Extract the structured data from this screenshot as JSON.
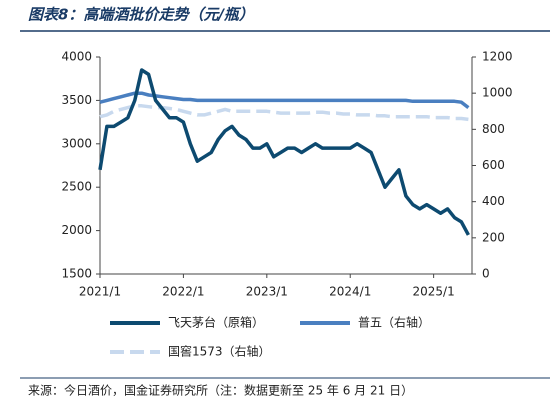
{
  "chart_data": {
    "type": "line",
    "title": "图表8：高端酒批价走势（元/瓶）",
    "source": "来源：今日酒价，国金证券研究所（注：数据更新至 25 年 6 月 21 日）",
    "x": [
      2021.0,
      2021.083,
      2021.167,
      2021.25,
      2021.333,
      2021.417,
      2021.5,
      2021.583,
      2021.667,
      2021.75,
      2021.833,
      2021.917,
      2022.0,
      2022.083,
      2022.167,
      2022.25,
      2022.333,
      2022.417,
      2022.5,
      2022.583,
      2022.667,
      2022.75,
      2022.833,
      2022.917,
      2023.0,
      2023.083,
      2023.167,
      2023.25,
      2023.333,
      2023.417,
      2023.5,
      2023.583,
      2023.667,
      2023.75,
      2023.833,
      2023.917,
      2024.0,
      2024.083,
      2024.167,
      2024.25,
      2024.333,
      2024.417,
      2024.5,
      2024.583,
      2024.667,
      2024.75,
      2024.833,
      2024.917,
      2025.0,
      2025.083,
      2025.167,
      2025.25,
      2025.333,
      2025.417
    ],
    "xlim": [
      2021,
      2025.46
    ],
    "xticks": [
      {
        "value": 2021,
        "label": "2021/1"
      },
      {
        "value": 2022,
        "label": "2022/1"
      },
      {
        "value": 2023,
        "label": "2023/1"
      },
      {
        "value": 2024,
        "label": "2024/1"
      },
      {
        "value": 2025,
        "label": "2025/1"
      }
    ],
    "ylim": [
      1500,
      4000
    ],
    "yticks": [
      1500,
      2000,
      2500,
      3000,
      3500,
      4000
    ],
    "y2lim": [
      0,
      1200
    ],
    "y2ticks": [
      0,
      200,
      400,
      600,
      800,
      1000,
      1200
    ],
    "series": [
      {
        "name": "飞天茅台（原箱）",
        "color": "#0d4a70",
        "dash": false,
        "values": [
          2700,
          3200,
          3200,
          3250,
          3300,
          3500,
          3850,
          3800,
          3500,
          3400,
          3300,
          3300,
          3250,
          3000,
          2800,
          2850,
          2900,
          3050,
          3150,
          3200,
          3100,
          3050,
          2950,
          2950,
          3000,
          2850,
          2900,
          2950,
          2950,
          2900,
          2950,
          3000,
          2950,
          2950,
          2950,
          2950,
          2950,
          3000,
          2950,
          2900,
          2700,
          2500,
          2600,
          2700,
          2400,
          2300,
          2250,
          2300,
          2250,
          2200,
          2250,
          2150,
          2100,
          1950
        ]
      },
      {
        "name": "普五（右轴）",
        "color": "#4a7fc0",
        "dash": false,
        "axis": "y2",
        "values": [
          950,
          960,
          970,
          980,
          990,
          1000,
          1000,
          990,
          985,
          980,
          975,
          970,
          965,
          965,
          960,
          960,
          960,
          960,
          960,
          960,
          960,
          960,
          960,
          960,
          960,
          960,
          960,
          960,
          960,
          960,
          960,
          960,
          960,
          960,
          960,
          960,
          960,
          960,
          960,
          960,
          960,
          960,
          960,
          960,
          960,
          955,
          955,
          955,
          955,
          955,
          955,
          955,
          950,
          920
        ]
      },
      {
        "name": "国窖1573（右轴）",
        "color": "#c8d9ee",
        "dash": true,
        "axis": "y2",
        "values": [
          870,
          880,
          900,
          910,
          920,
          930,
          930,
          925,
          920,
          920,
          915,
          910,
          900,
          890,
          880,
          880,
          890,
          900,
          910,
          900,
          900,
          900,
          900,
          900,
          900,
          895,
          890,
          890,
          890,
          890,
          890,
          895,
          895,
          890,
          890,
          885,
          885,
          880,
          880,
          880,
          875,
          875,
          870,
          870,
          870,
          870,
          870,
          870,
          865,
          865,
          865,
          860,
          860,
          855
        ]
      }
    ]
  }
}
